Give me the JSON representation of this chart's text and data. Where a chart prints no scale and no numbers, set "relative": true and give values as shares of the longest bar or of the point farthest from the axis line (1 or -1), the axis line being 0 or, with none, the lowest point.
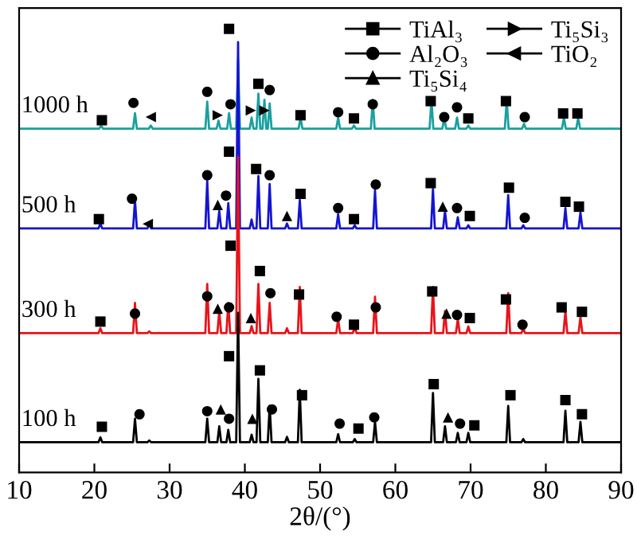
{
  "chart_data": {
    "type": "line",
    "relative": true,
    "xlabel": "2θ/(°)",
    "xlim": [
      10,
      90
    ],
    "xticks": [
      10,
      20,
      30,
      40,
      50,
      60,
      70,
      80,
      90
    ],
    "grid": false,
    "legend": "top right",
    "tick_labels": "x",
    "series": [
      {
        "name": "1000 h",
        "color": "#1aa0a0",
        "marker": "none",
        "x": [
          10,
          20.65,
          20.9,
          21.15,
          25.15,
          25.4,
          25.65,
          27.25,
          27.5,
          27.75,
          34.75,
          35.0,
          35.25,
          36.25,
          36.5,
          36.75,
          37.65,
          37.9,
          38.15,
          38.85,
          39.1,
          39.35,
          40.65,
          40.9,
          41.15,
          41.55,
          41.8,
          42.05,
          42.35,
          42.6,
          42.85,
          43.05,
          43.3,
          43.55,
          47.15,
          47.4,
          47.65,
          52.15,
          52.4,
          52.65,
          54.25,
          54.5,
          54.75,
          56.75,
          57.0,
          57.25,
          64.55,
          64.8,
          65.05,
          66.25,
          66.5,
          66.75,
          67.95,
          68.2,
          68.45,
          69.45,
          69.7,
          69.95,
          74.55,
          74.8,
          75.05,
          76.85,
          77.1,
          77.35,
          82.15,
          82.4,
          82.65,
          84.05,
          84.3,
          84.55,
          90
        ],
        "values": [
          0.775,
          0.775,
          0.782,
          0.775,
          0.775,
          0.81,
          0.775,
          0.775,
          0.782,
          0.775,
          0.775,
          0.836,
          0.775,
          0.775,
          0.793,
          0.775,
          0.775,
          0.81,
          0.775,
          0.775,
          0.93,
          0.775,
          0.775,
          0.8,
          0.775,
          0.775,
          0.854,
          0.775,
          0.775,
          0.84,
          0.775,
          0.775,
          0.832,
          0.775,
          0.775,
          0.8,
          0.775,
          0.775,
          0.8,
          0.775,
          0.775,
          0.782,
          0.775,
          0.775,
          0.84,
          0.775,
          0.775,
          0.84,
          0.775,
          0.775,
          0.8,
          0.775,
          0.775,
          0.8,
          0.775,
          0.775,
          0.782,
          0.775,
          0.775,
          0.84,
          0.775,
          0.775,
          0.786,
          0.775,
          0.775,
          0.8,
          0.775,
          0.775,
          0.8,
          0.775,
          0.775
        ]
      },
      {
        "name": "500 h",
        "color": "#1414d2",
        "marker": "none",
        "x": [
          10,
          20.55,
          20.8,
          21.05,
          25.15,
          25.4,
          25.65,
          27.05,
          27.3,
          27.55,
          34.75,
          35.0,
          35.25,
          36.35,
          36.6,
          36.85,
          37.55,
          37.8,
          38.05,
          38.85,
          39.1,
          39.35,
          40.65,
          40.9,
          41.15,
          41.55,
          41.8,
          42.05,
          43.05,
          43.3,
          43.55,
          45.35,
          45.6,
          45.85,
          47.05,
          47.3,
          47.55,
          52.15,
          52.4,
          52.65,
          54.35,
          54.6,
          54.85,
          57.05,
          57.3,
          57.55,
          64.75,
          65.0,
          65.25,
          66.35,
          66.6,
          66.85,
          68.05,
          68.3,
          68.55,
          69.45,
          69.7,
          69.95,
          74.75,
          75.0,
          75.25,
          76.75,
          77.0,
          77.25,
          82.35,
          82.6,
          82.85,
          84.35,
          84.6,
          84.85,
          90
        ],
        "values": [
          0.55,
          0.55,
          0.561,
          0.55,
          0.55,
          0.614,
          0.55,
          0.55,
          0.561,
          0.55,
          0.55,
          0.657,
          0.55,
          0.55,
          0.589,
          0.55,
          0.55,
          0.607,
          0.55,
          0.55,
          0.97,
          0.55,
          0.55,
          0.57,
          0.55,
          0.55,
          0.668,
          0.55,
          0.55,
          0.65,
          0.55,
          0.55,
          0.561,
          0.55,
          0.55,
          0.614,
          0.55,
          0.55,
          0.582,
          0.55,
          0.55,
          0.557,
          0.55,
          0.55,
          0.636,
          0.55,
          0.55,
          0.639,
          0.55,
          0.55,
          0.589,
          0.55,
          0.55,
          0.575,
          0.55,
          0.55,
          0.557,
          0.55,
          0.55,
          0.625,
          0.55,
          0.55,
          0.557,
          0.55,
          0.55,
          0.596,
          0.55,
          0.55,
          0.586,
          0.55,
          0.55
        ]
      },
      {
        "name": "300 h",
        "color": "#e8141a",
        "marker": "none",
        "x": [
          10,
          20.55,
          20.8,
          21.05,
          25.15,
          25.4,
          25.65,
          27.05,
          27.3,
          27.55,
          34.75,
          35.0,
          35.25,
          36.35,
          36.6,
          36.85,
          37.55,
          37.8,
          38.05,
          38.85,
          39.1,
          39.35,
          40.65,
          40.9,
          41.15,
          41.55,
          41.8,
          42.05,
          43.05,
          43.3,
          43.55,
          45.35,
          45.6,
          45.85,
          47.05,
          47.3,
          47.55,
          52.15,
          52.4,
          52.65,
          54.35,
          54.6,
          54.85,
          57.05,
          57.3,
          57.55,
          64.75,
          65.0,
          65.25,
          66.35,
          66.6,
          66.85,
          68.05,
          68.3,
          68.55,
          69.45,
          69.7,
          69.95,
          74.75,
          75.0,
          75.25,
          76.75,
          77.0,
          77.25,
          82.35,
          82.6,
          82.85,
          84.35,
          84.6,
          84.85,
          90
        ],
        "values": [
          0.314,
          0.314,
          0.325,
          0.314,
          0.314,
          0.382,
          0.314,
          0.314,
          0.318,
          0.314,
          0.314,
          0.425,
          0.314,
          0.314,
          0.364,
          0.314,
          0.314,
          0.382,
          0.314,
          0.314,
          0.711,
          0.314,
          0.314,
          0.33,
          0.314,
          0.314,
          0.425,
          0.314,
          0.314,
          0.382,
          0.314,
          0.314,
          0.325,
          0.314,
          0.314,
          0.418,
          0.314,
          0.314,
          0.346,
          0.314,
          0.314,
          0.329,
          0.314,
          0.314,
          0.396,
          0.314,
          0.314,
          0.418,
          0.314,
          0.314,
          0.364,
          0.314,
          0.314,
          0.346,
          0.314,
          0.314,
          0.329,
          0.314,
          0.314,
          0.404,
          0.314,
          0.314,
          0.325,
          0.314,
          0.314,
          0.364,
          0.314,
          0.314,
          0.35,
          0.314,
          0.314
        ]
      },
      {
        "name": "100 h",
        "color": "#000000",
        "marker": "none",
        "x": [
          10,
          20.55,
          20.8,
          21.05,
          25.15,
          25.4,
          25.65,
          27.05,
          27.3,
          27.55,
          34.75,
          35.0,
          35.25,
          36.35,
          36.6,
          36.85,
          37.55,
          37.8,
          38.05,
          38.85,
          39.1,
          39.35,
          40.65,
          40.9,
          41.15,
          41.55,
          41.8,
          42.05,
          43.05,
          43.3,
          43.55,
          45.35,
          45.6,
          45.85,
          47.05,
          47.3,
          47.55,
          52.15,
          52.4,
          52.65,
          54.35,
          54.6,
          54.85,
          57.05,
          57.3,
          57.55,
          64.75,
          65.0,
          65.25,
          66.35,
          66.6,
          66.85,
          68.05,
          68.3,
          68.55,
          69.45,
          69.7,
          69.95,
          74.75,
          75.0,
          75.25,
          76.75,
          77.0,
          77.25,
          82.35,
          82.6,
          82.85,
          84.35,
          84.6,
          84.85,
          90
        ],
        "values": [
          0.068,
          0.068,
          0.079,
          0.068,
          0.068,
          0.121,
          0.068,
          0.068,
          0.072,
          0.068,
          0.068,
          0.121,
          0.068,
          0.068,
          0.104,
          0.068,
          0.068,
          0.096,
          0.068,
          0.068,
          0.36,
          0.068,
          0.068,
          0.085,
          0.068,
          0.068,
          0.211,
          0.068,
          0.068,
          0.15,
          0.068,
          0.068,
          0.08,
          0.068,
          0.068,
          0.186,
          0.068,
          0.068,
          0.086,
          0.068,
          0.068,
          0.075,
          0.068,
          0.068,
          0.114,
          0.068,
          0.068,
          0.179,
          0.068,
          0.068,
          0.104,
          0.068,
          0.068,
          0.089,
          0.068,
          0.068,
          0.089,
          0.068,
          0.068,
          0.15,
          0.068,
          0.068,
          0.075,
          0.068,
          0.068,
          0.139,
          0.068,
          0.068,
          0.114,
          0.068,
          0.068
        ]
      },
      {
        "name": "TiAl₃",
        "type": "scatter",
        "color": "#000000",
        "marker": "square",
        "x": [
          21.0,
          37.9,
          41.8,
          47.4,
          54.5,
          64.7,
          69.7,
          74.7,
          82.3,
          84.2,
          20.6,
          37.9,
          41.5,
          47.4,
          54.5,
          64.7,
          69.9,
          75.1,
          82.6,
          84.4,
          20.8,
          38.1,
          42.0,
          47.2,
          54.5,
          64.9,
          69.9,
          74.7,
          82.1,
          84.8,
          21.0,
          37.9,
          42.0,
          47.6,
          55.1,
          65.1,
          70.5,
          75.3,
          82.6,
          84.8
        ],
        "values": [
          0.794,
          1.0,
          0.876,
          0.805,
          0.798,
          0.837,
          0.798,
          0.837,
          0.809,
          0.809,
          0.571,
          0.723,
          0.684,
          0.628,
          0.571,
          0.652,
          0.578,
          0.642,
          0.61,
          0.599,
          0.34,
          0.511,
          0.454,
          0.401,
          0.333,
          0.408,
          0.348,
          0.39,
          0.372,
          0.362,
          0.103,
          0.262,
          0.23,
          0.174,
          0.099,
          0.199,
          0.106,
          0.174,
          0.163,
          0.131
        ]
      },
      {
        "name": "Al₂O₃",
        "type": "scatter",
        "color": "#000000",
        "marker": "circle",
        "x": [
          25.2,
          35.0,
          38.1,
          43.3,
          52.4,
          57.0,
          66.5,
          68.2,
          77.2,
          25.0,
          35.0,
          37.5,
          43.3,
          52.4,
          57.4,
          68.2,
          77.2,
          25.4,
          35.0,
          37.9,
          43.4,
          52.2,
          57.4,
          68.2,
          76.9,
          26.0,
          35.0,
          37.9,
          43.6,
          52.6,
          57.2,
          68.6
        ],
        "values": [
          0.833,
          0.858,
          0.83,
          0.862,
          0.812,
          0.83,
          0.801,
          0.823,
          0.801,
          0.617,
          0.67,
          0.624,
          0.67,
          0.596,
          0.649,
          0.596,
          0.574,
          0.358,
          0.397,
          0.372,
          0.404,
          0.351,
          0.372,
          0.355,
          0.333,
          0.131,
          0.138,
          0.121,
          0.142,
          0.11,
          0.124,
          0.11
        ]
      },
      {
        "name": "Ti₅Si₄",
        "type": "scatter",
        "color": "#000000",
        "marker": "triangle",
        "x": [
          36.4,
          45.6,
          66.3,
          36.4,
          40.8,
          66.8,
          36.8,
          41.0,
          67.0
        ],
        "values": [
          0.603,
          0.578,
          0.599,
          0.369,
          0.348,
          0.358,
          0.142,
          0.121,
          0.124
        ]
      },
      {
        "name": "Ti₅Si₃",
        "type": "scatter",
        "color": "#000000",
        "marker": "triangle-right",
        "x": [
          36.4,
          40.8,
          42.6
        ],
        "values": [
          0.805,
          0.816,
          0.816
        ]
      },
      {
        "name": "TiO₂",
        "type": "scatter",
        "color": "#000000",
        "marker": "triangle-left",
        "x": [
          27.5,
          27.1
        ],
        "values": [
          0.801,
          0.56
        ]
      }
    ]
  }
}
